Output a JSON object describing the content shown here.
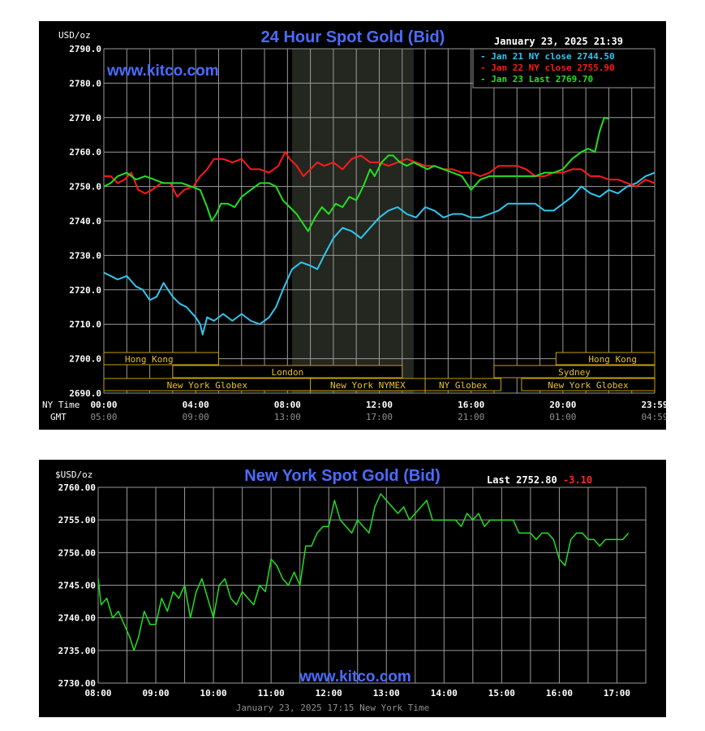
{
  "colors": {
    "background": "#000000",
    "grid": "#9a9a9a",
    "title": "#4a6cff",
    "watermark": "#4a6cff",
    "series_jan21": "#2ec8f0",
    "series_jan22": "#ff1a1a",
    "series_jan23": "#22e022",
    "session_box": "#c8a000",
    "session_text": "#e8c020",
    "gmt_text": "#909090",
    "axis_text": "#ffffff",
    "change_negative": "#ff2a2a"
  },
  "chart1": {
    "unit_label": "USD/oz",
    "title": "24 Hour Spot Gold (Bid)",
    "timestamp": "January 23, 2025 21:39",
    "watermark": "www.kitco.com",
    "ny_time_label": "NY Time",
    "gmt_label": "GMT",
    "legend": [
      {
        "text": "Jan 21 NY close 2744.50",
        "color": "#2ec8f0"
      },
      {
        "text": "Jan 22 NY close 2755.90",
        "color": "#ff1a1a"
      },
      {
        "text": "Jan 23 Last 2769.70",
        "color": "#22e022"
      }
    ],
    "sessions": [
      {
        "label": "Hong Kong",
        "row": 0,
        "start": 0.0,
        "end": 5.0,
        "align": "left"
      },
      {
        "label": "London",
        "row": 1,
        "start": 3.0,
        "end": 13.0,
        "align": "center"
      },
      {
        "label": "New York Globex",
        "row": 2,
        "start": 0.0,
        "end": 9.0,
        "align": "center"
      },
      {
        "label": "New York NYMEX",
        "row": 2,
        "start": 9.0,
        "end": 14.0,
        "align": "center"
      },
      {
        "label": "NY Globex",
        "row": 2,
        "start": 14.0,
        "end": 17.3,
        "align": "center"
      },
      {
        "label": "Sydney",
        "row": 1,
        "start": 17.0,
        "end": 24.0,
        "align": "center"
      },
      {
        "label": "Hong Kong",
        "row": 0,
        "start": 19.7,
        "end": 24.0,
        "align": "right"
      },
      {
        "label": "New York Globex",
        "row": 2,
        "start": 18.2,
        "end": 24.0,
        "align": "center"
      }
    ]
  },
  "chart2": {
    "unit_label": "$USD/oz",
    "title": "New York Spot Gold (Bid)",
    "last_label": "Last",
    "last_value": "2752.80",
    "change": "-3.10",
    "watermark": "www.kitco.com",
    "footer": "January 23, 2025 17:15 New York Time"
  },
  "chart_data": [
    {
      "type": "line",
      "title": "24 Hour Spot Gold (Bid)",
      "ylabel": "USD/oz",
      "ylim": [
        2690,
        2790
      ],
      "yticks": [
        "2790.0",
        "2780.0",
        "2770.0",
        "2760.0",
        "2750.0",
        "2740.0",
        "2730.0",
        "2720.0",
        "2710.0",
        "2700.0",
        "2690.0"
      ],
      "xlim": [
        0,
        24
      ],
      "xticks_ny": [
        "00:00",
        "04:00",
        "08:00",
        "12:00",
        "16:00",
        "20:00",
        "23:59"
      ],
      "xticks_gmt": [
        "05:00",
        "09:00",
        "13:00",
        "17:00",
        "21:00",
        "01:00",
        "04:59"
      ],
      "xtick_positions": [
        0,
        4,
        8,
        12,
        16,
        20,
        24
      ],
      "grid": true,
      "shaded_region": [
        8.2,
        13.5
      ],
      "legend_position": "top-right",
      "series": [
        {
          "name": "Jan 21 NY close 2744.50",
          "color": "#2ec8f0",
          "x": [
            0,
            0.3,
            0.6,
            1.0,
            1.4,
            1.7,
            2.0,
            2.3,
            2.6,
            2.8,
            3.0,
            3.3,
            3.6,
            4.0,
            4.2,
            4.3,
            4.5,
            4.8,
            5.2,
            5.6,
            6.0,
            6.4,
            6.8,
            7.2,
            7.5,
            7.8,
            8.0,
            8.2,
            8.6,
            9.0,
            9.3,
            9.6,
            10.0,
            10.4,
            10.8,
            11.2,
            11.6,
            12.0,
            12.4,
            12.8,
            13.2,
            13.6,
            14.0,
            14.4,
            14.8,
            15.2,
            15.6,
            16.0,
            16.4,
            16.8,
            17.2,
            17.6,
            18.0,
            18.4,
            18.8,
            19.2,
            19.6,
            20.0,
            20.4,
            20.8,
            21.2,
            21.6,
            22.0,
            22.4,
            22.8,
            23.2,
            23.6,
            24.0
          ],
          "values": [
            2725,
            2724,
            2723,
            2724,
            2721,
            2720,
            2717,
            2718,
            2722,
            2720,
            2718,
            2716,
            2715,
            2712,
            2710,
            2707,
            2712,
            2711,
            2713,
            2711,
            2713,
            2711,
            2710,
            2712,
            2715,
            2720,
            2723,
            2726,
            2728,
            2727,
            2726,
            2730,
            2735,
            2738,
            2737,
            2735,
            2738,
            2741,
            2743,
            2744,
            2742,
            2741,
            2744,
            2743,
            2741,
            2742,
            2742,
            2741,
            2741,
            2742,
            2743,
            2745,
            2745,
            2745,
            2745,
            2743,
            2743,
            2745,
            2747,
            2750,
            2748,
            2747,
            2749,
            2748,
            2750,
            2751,
            2753,
            2754
          ]
        },
        {
          "name": "Jan 22 NY close 2755.90",
          "color": "#ff1a1a",
          "x": [
            0,
            0.3,
            0.6,
            0.9,
            1.2,
            1.5,
            1.8,
            2.1,
            2.5,
            2.9,
            3.2,
            3.5,
            3.9,
            4.2,
            4.5,
            4.8,
            5.2,
            5.6,
            6.0,
            6.4,
            6.8,
            7.2,
            7.6,
            7.9,
            8.1,
            8.4,
            8.7,
            9.0,
            9.3,
            9.6,
            10.0,
            10.4,
            10.8,
            11.2,
            11.6,
            12.0,
            12.4,
            12.8,
            13.2,
            13.6,
            14.0,
            14.4,
            14.8,
            15.2,
            15.6,
            16.0,
            16.4,
            16.8,
            17.2,
            17.6,
            18.0,
            18.4,
            18.8,
            19.2,
            19.6,
            20.0,
            20.4,
            20.8,
            21.2,
            21.6,
            22.0,
            22.4,
            22.8,
            23.2,
            23.6,
            24.0
          ],
          "values": [
            2753,
            2753,
            2751,
            2752,
            2754,
            2749,
            2748,
            2749,
            2751,
            2751,
            2747,
            2749,
            2750,
            2753,
            2755,
            2758,
            2758,
            2757,
            2758,
            2755,
            2755,
            2754,
            2756,
            2760,
            2758,
            2756,
            2753,
            2755,
            2757,
            2756,
            2757,
            2755,
            2758,
            2759,
            2757,
            2757,
            2756,
            2757,
            2758,
            2757,
            2756,
            2756,
            2755,
            2755,
            2754,
            2754,
            2753,
            2754,
            2756,
            2756,
            2756,
            2755,
            2753,
            2753,
            2754,
            2754,
            2755,
            2755,
            2753,
            2753,
            2752,
            2752,
            2751,
            2750,
            2752,
            2751
          ]
        },
        {
          "name": "Jan 23 Last 2769.70",
          "color": "#22e022",
          "x": [
            0,
            0.3,
            0.6,
            1.0,
            1.4,
            1.8,
            2.2,
            2.6,
            3.0,
            3.4,
            3.8,
            4.2,
            4.5,
            4.7,
            4.9,
            5.1,
            5.4,
            5.7,
            6.0,
            6.4,
            6.8,
            7.2,
            7.5,
            7.8,
            8.1,
            8.4,
            8.6,
            8.9,
            9.2,
            9.5,
            9.8,
            10.1,
            10.4,
            10.7,
            11.0,
            11.3,
            11.6,
            11.8,
            12.1,
            12.4,
            12.6,
            12.9,
            13.2,
            13.5,
            13.8,
            14.1,
            14.4,
            14.8,
            15.2,
            15.6,
            16.0,
            16.4,
            16.8,
            17.2,
            17.6,
            18.0,
            18.4,
            18.8,
            19.2,
            19.6,
            20.0,
            20.4,
            20.8,
            21.1,
            21.4,
            21.6,
            21.8,
            22.0
          ],
          "values": [
            2750,
            2751,
            2753,
            2754,
            2752,
            2753,
            2752,
            2751,
            2751,
            2751,
            2750,
            2749,
            2744,
            2740,
            2742,
            2745,
            2745,
            2744,
            2747,
            2749,
            2751,
            2751,
            2750,
            2746,
            2744,
            2742,
            2740,
            2737,
            2741,
            2744,
            2742,
            2745,
            2744,
            2747,
            2746,
            2750,
            2755,
            2753,
            2757,
            2759,
            2759,
            2757,
            2756,
            2757,
            2756,
            2755,
            2756,
            2755,
            2754,
            2753,
            2749,
            2752,
            2753,
            2753,
            2753,
            2753,
            2753,
            2753,
            2754,
            2754,
            2755,
            2758,
            2760,
            2761,
            2760,
            2766,
            2770,
            2769.7
          ]
        }
      ]
    },
    {
      "type": "line",
      "title": "New York Spot Gold (Bid)",
      "ylabel": "$USD/oz",
      "ylim": [
        2730,
        2760
      ],
      "yticks": [
        "2760.00",
        "2755.00",
        "2750.00",
        "2745.00",
        "2740.00",
        "2735.00",
        "2730.00"
      ],
      "xlim": [
        8,
        17.5
      ],
      "xticks": [
        "08:00",
        "09:00",
        "10:00",
        "11:00",
        "12:00",
        "13:00",
        "14:00",
        "15:00",
        "16:00",
        "17:00"
      ],
      "xtick_positions": [
        8,
        9,
        10,
        11,
        12,
        13,
        14,
        15,
        16,
        17
      ],
      "grid": true,
      "series": [
        {
          "name": "",
          "color": "#22e022",
          "x": [
            8.0,
            8.05,
            8.15,
            8.25,
            8.35,
            8.45,
            8.55,
            8.62,
            8.7,
            8.8,
            8.9,
            9.0,
            9.1,
            9.2,
            9.3,
            9.4,
            9.5,
            9.6,
            9.7,
            9.8,
            9.9,
            10.0,
            10.1,
            10.2,
            10.3,
            10.4,
            10.5,
            10.6,
            10.7,
            10.8,
            10.9,
            11.0,
            11.1,
            11.2,
            11.3,
            11.4,
            11.5,
            11.6,
            11.7,
            11.8,
            11.9,
            12.0,
            12.1,
            12.2,
            12.3,
            12.4,
            12.5,
            12.6,
            12.7,
            12.8,
            12.9,
            13.0,
            13.1,
            13.2,
            13.3,
            13.4,
            13.5,
            13.6,
            13.7,
            13.8,
            13.9,
            14.0,
            14.1,
            14.2,
            14.3,
            14.4,
            14.5,
            14.6,
            14.7,
            14.8,
            14.9,
            15.0,
            15.1,
            15.2,
            15.3,
            15.4,
            15.5,
            15.6,
            15.7,
            15.8,
            15.9,
            16.0,
            16.1,
            16.2,
            16.3,
            16.4,
            16.5,
            16.6,
            16.7,
            16.8,
            16.9,
            17.0,
            17.1,
            17.2
          ],
          "values": [
            2746,
            2742,
            2743,
            2740,
            2741,
            2739,
            2737,
            2735,
            2737,
            2741,
            2739,
            2739,
            2743,
            2741,
            2744,
            2743,
            2745,
            2740,
            2744,
            2746,
            2743,
            2740,
            2745,
            2746,
            2743,
            2742,
            2744,
            2743,
            2742,
            2745,
            2744,
            2749,
            2748,
            2746,
            2745,
            2747,
            2745,
            2751,
            2751,
            2753,
            2754,
            2754,
            2758,
            2755,
            2754,
            2753,
            2755,
            2754,
            2753,
            2757,
            2759,
            2758,
            2757,
            2756,
            2757,
            2755,
            2756,
            2757,
            2758,
            2755,
            2755,
            2755,
            2755,
            2755,
            2754,
            2756,
            2755,
            2756,
            2754,
            2755,
            2755,
            2755,
            2755,
            2755,
            2753,
            2753,
            2753,
            2752,
            2753,
            2753,
            2752,
            2749,
            2748,
            2752,
            2753,
            2753,
            2752,
            2752,
            2751,
            2752,
            2752,
            2752,
            2752,
            2753
          ]
        }
      ]
    }
  ]
}
